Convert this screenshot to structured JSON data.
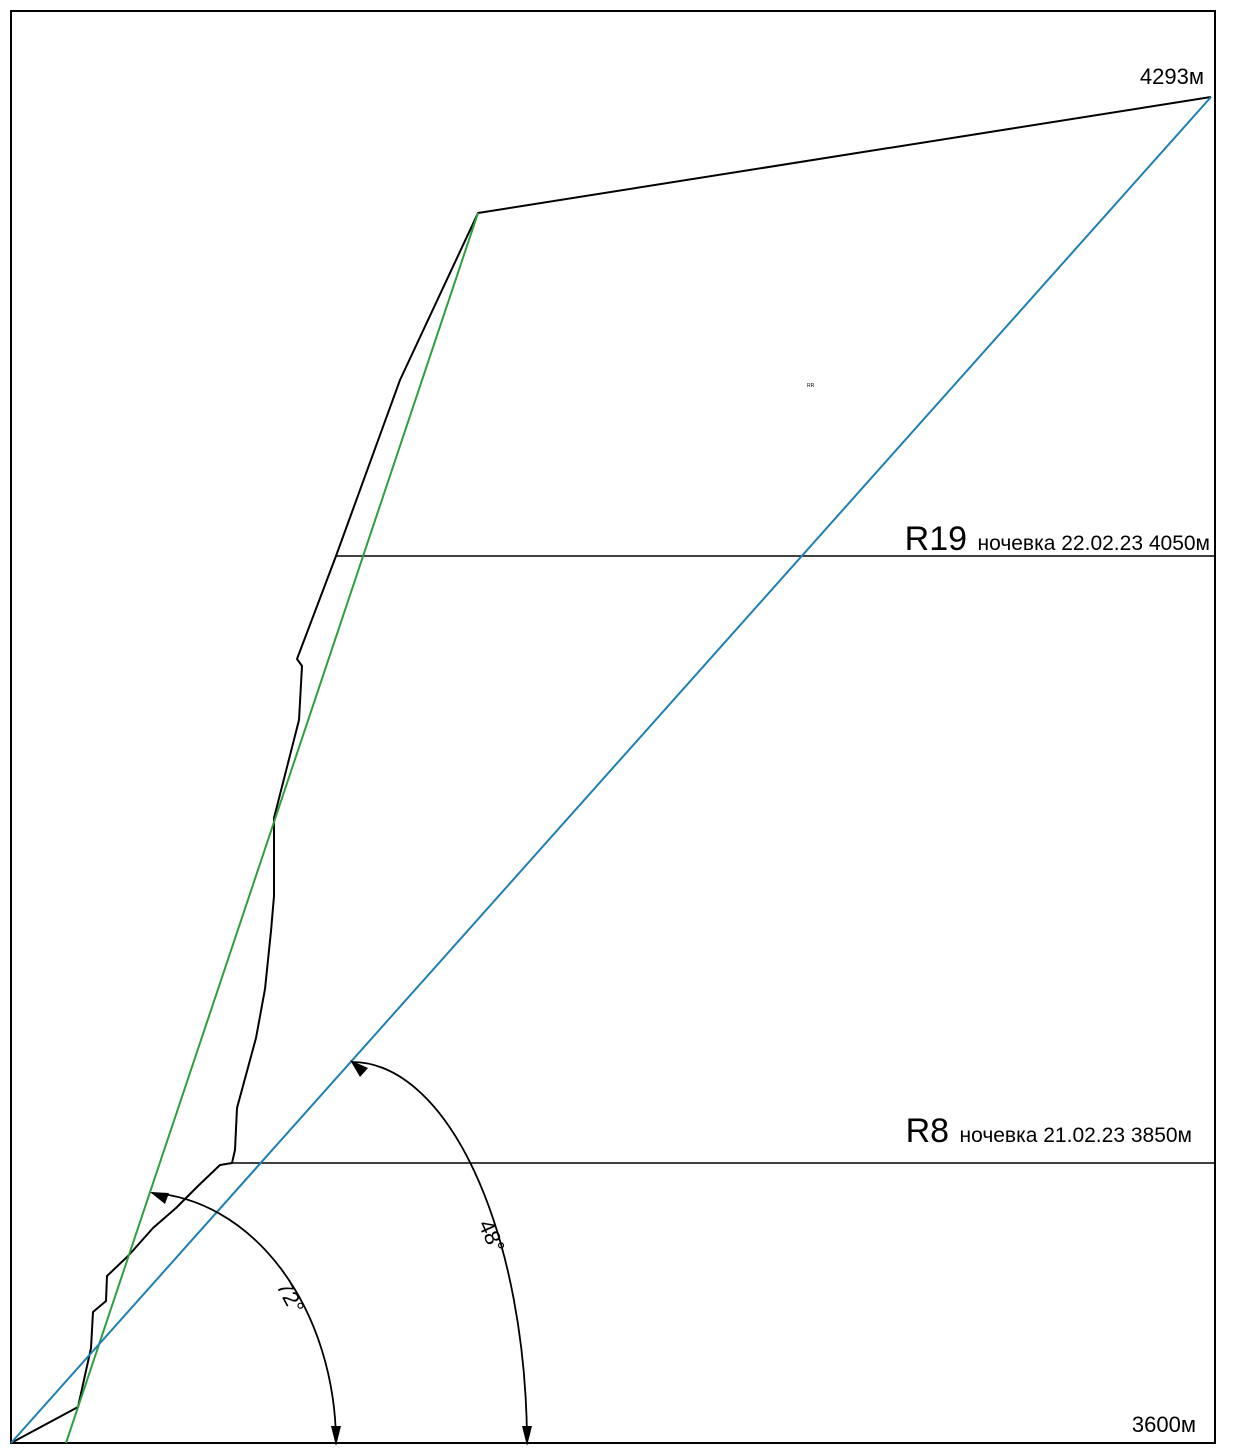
{
  "altitude_top": "4293м",
  "altitude_bottom": "3600м",
  "camps": [
    {
      "id": "R19",
      "note": "ночевка 22.02.23 4050м"
    },
    {
      "id": "R8",
      "note": "ночевка 21.02.23 3850м"
    }
  ],
  "angles": [
    "72°",
    "48°"
  ],
  "tiny_label": "RR",
  "colors": {
    "route": "#000000",
    "slope_line_steep": "#2e9e3e",
    "slope_line_average": "#1f7fb4",
    "frame": "#000000"
  }
}
